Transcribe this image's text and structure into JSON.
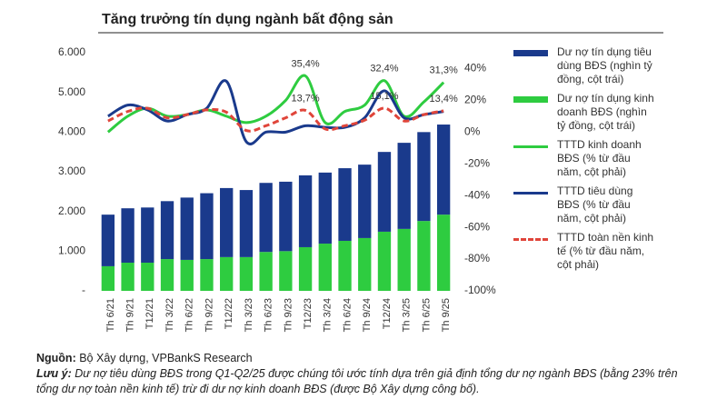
{
  "chart_data": {
    "type": "bar",
    "stacked": true,
    "title": "Tăng trưởng tín dụng ngành bất động sản",
    "categories": [
      "Th 6/21",
      "Th 9/21",
      "T12/21",
      "Th 3/22",
      "Th 6/22",
      "Th 9/22",
      "T12/22",
      "Th 3/23",
      "Th 6/23",
      "Th 9/23",
      "T12/23",
      "Th 3/24",
      "Th 6/24",
      "Th 9/24",
      "T12/24",
      "Th 3/25",
      "Th 6/25",
      "Th 9/25"
    ],
    "ylim": [
      0,
      6000
    ],
    "yticks": [
      {
        "value": 0,
        "label": "-"
      },
      {
        "value": 1000,
        "label": "1.000"
      },
      {
        "value": 2000,
        "label": "2.000"
      },
      {
        "value": 3000,
        "label": "3.000"
      },
      {
        "value": 4000,
        "label": "4.000"
      },
      {
        "value": 5000,
        "label": "5.000"
      },
      {
        "value": 6000,
        "label": "6.000"
      }
    ],
    "y2lim": [
      -100,
      50
    ],
    "y2ticks": [
      {
        "value": -100,
        "label": "-100%"
      },
      {
        "value": -80,
        "label": "-80%"
      },
      {
        "value": -60,
        "label": "-60%"
      },
      {
        "value": -40,
        "label": "-40%"
      },
      {
        "value": -20,
        "label": "-20%"
      },
      {
        "value": 0,
        "label": "0%"
      },
      {
        "value": 20,
        "label": "20%"
      },
      {
        "value": 40,
        "label": "40%"
      }
    ],
    "series": [
      {
        "name": "Dư nợ tín dụng tiêu dùng BĐS (nghìn tỷ đồng, cột trái)",
        "type": "bar",
        "color": "#1a3a8c",
        "values": [
          1300,
          1370,
          1390,
          1460,
          1570,
          1660,
          1740,
          1690,
          1740,
          1750,
          1810,
          1790,
          1830,
          1850,
          2010,
          2170,
          2240,
          2270
        ]
      },
      {
        "name": "Dư nợ tín dụng kinh doanh BĐS (nghìn tỷ đồng, cột trái)",
        "type": "bar",
        "color": "#2ecc40",
        "values": [
          620,
          710,
          710,
          800,
          780,
          800,
          850,
          850,
          980,
          1000,
          1100,
          1190,
          1260,
          1330,
          1490,
          1560,
          1760,
          1920
        ]
      },
      {
        "name": "TTTD kinh doanh BĐS (% từ đầu năm, cột phải)",
        "type": "line",
        "axis": "y2",
        "color": "#2ecc40",
        "line_style": "solid",
        "values": [
          0,
          10,
          15,
          10,
          11,
          14,
          10,
          6,
          10,
          20,
          35.4,
          6,
          13,
          17,
          32.4,
          10,
          19,
          31.3
        ],
        "value_labels": [
          null,
          null,
          null,
          null,
          null,
          null,
          null,
          null,
          null,
          null,
          "35,4%",
          null,
          null,
          null,
          "32,4%",
          null,
          null,
          "31,3%"
        ]
      },
      {
        "name": "TTTD tiêu dùng BĐS (% từ đầu năm, cột phải)",
        "type": "line",
        "axis": "y2",
        "color": "#1a3a8c",
        "line_style": "solid",
        "values": [
          10,
          17,
          14,
          7,
          11,
          15,
          32,
          -6,
          0,
          0,
          4,
          3,
          3,
          9,
          26,
          9,
          11,
          13
        ]
      },
      {
        "name": "TTTD toàn nền kinh tế (% từ đầu năm, cột phải)",
        "type": "line",
        "axis": "y2",
        "color": "#e0453a",
        "line_style": "dashed",
        "values": [
          7,
          13,
          15,
          9,
          11,
          14,
          12.5,
          1,
          4,
          9,
          13.7,
          2,
          4,
          7.5,
          15.1,
          7,
          11,
          13.4
        ],
        "value_labels": [
          null,
          null,
          null,
          null,
          null,
          null,
          null,
          null,
          null,
          null,
          "13,7%",
          null,
          null,
          null,
          "15,1%",
          null,
          null,
          "13,4%"
        ]
      }
    ]
  },
  "footer": {
    "source_label": "Nguồn:",
    "source": "Bộ Xây dựng, VPBankS Research",
    "note_label": "Lưu ý:",
    "note": "Dư nợ tiêu dùng BĐS trong Q1-Q2/25 được chúng tôi ước tính dựa trên giả định tổng dư nợ ngành BĐS (bằng 23% trên tổng dư nợ toàn nền kinh tế) trừ đi dư nợ kinh doanh BĐS (được Bộ Xây dựng công bố)."
  }
}
